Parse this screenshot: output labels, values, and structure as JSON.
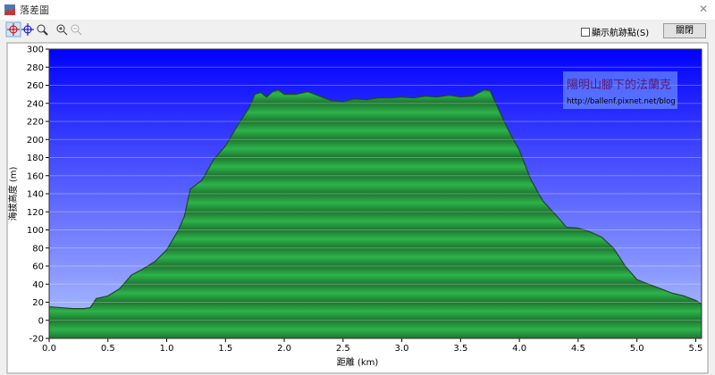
{
  "window": {
    "title": "落差圖",
    "checkbox": "顯示航跡點(S)",
    "button": "關閉"
  },
  "chart_data": {
    "type": "area",
    "x_label": "距離 (km)",
    "y_label": "海拔高度 (m)",
    "annotation": {
      "title": "陽明山腳下的法蘭克",
      "url": "http://ballenf.pixnet.net/blog"
    },
    "color": "#2db34a",
    "grid": true,
    "xlim": [
      0,
      5.55
    ],
    "ylim": [
      -20,
      300
    ],
    "xticks": [
      {
        "value": 0,
        "label": "0.0"
      },
      0.5,
      {
        "value": 1,
        "label": "1.0"
      },
      1.5,
      {
        "value": 2,
        "label": "2.0"
      },
      2.5,
      {
        "value": 3,
        "label": "3.0"
      },
      3.5,
      {
        "value": 4,
        "label": "4.0"
      },
      4.5,
      {
        "value": 5,
        "label": "5.0"
      },
      5.5
    ],
    "yticks": [
      -20,
      0,
      20,
      40,
      60,
      80,
      100,
      120,
      140,
      160,
      180,
      200,
      220,
      240,
      260,
      280,
      300
    ],
    "x": [
      0,
      0.1,
      0.2,
      0.3,
      0.35,
      0.4,
      0.5,
      0.6,
      0.7,
      0.8,
      0.9,
      1.0,
      1.1,
      1.15,
      1.2,
      1.3,
      1.4,
      1.5,
      1.6,
      1.7,
      1.75,
      1.8,
      1.85,
      1.9,
      1.95,
      2.0,
      2.1,
      2.2,
      2.3,
      2.4,
      2.5,
      2.6,
      2.7,
      2.8,
      2.9,
      3.0,
      3.1,
      3.2,
      3.3,
      3.4,
      3.5,
      3.6,
      3.7,
      3.75,
      3.8,
      3.9,
      4.0,
      4.1,
      4.2,
      4.3,
      4.4,
      4.5,
      4.6,
      4.7,
      4.8,
      4.9,
      5.0,
      5.1,
      5.2,
      5.3,
      5.4,
      5.5,
      5.55
    ],
    "values": [
      15,
      14,
      13,
      13,
      14,
      24,
      27,
      35,
      50,
      57,
      65,
      78,
      100,
      115,
      145,
      155,
      178,
      193,
      215,
      235,
      250,
      252,
      247,
      253,
      255,
      250,
      250,
      253,
      248,
      243,
      242,
      245,
      244,
      246,
      246,
      247,
      246,
      248,
      247,
      249,
      247,
      248,
      255,
      254,
      240,
      212,
      188,
      155,
      132,
      118,
      103,
      102,
      98,
      92,
      80,
      60,
      45,
      40,
      35,
      30,
      27,
      22,
      18
    ]
  }
}
